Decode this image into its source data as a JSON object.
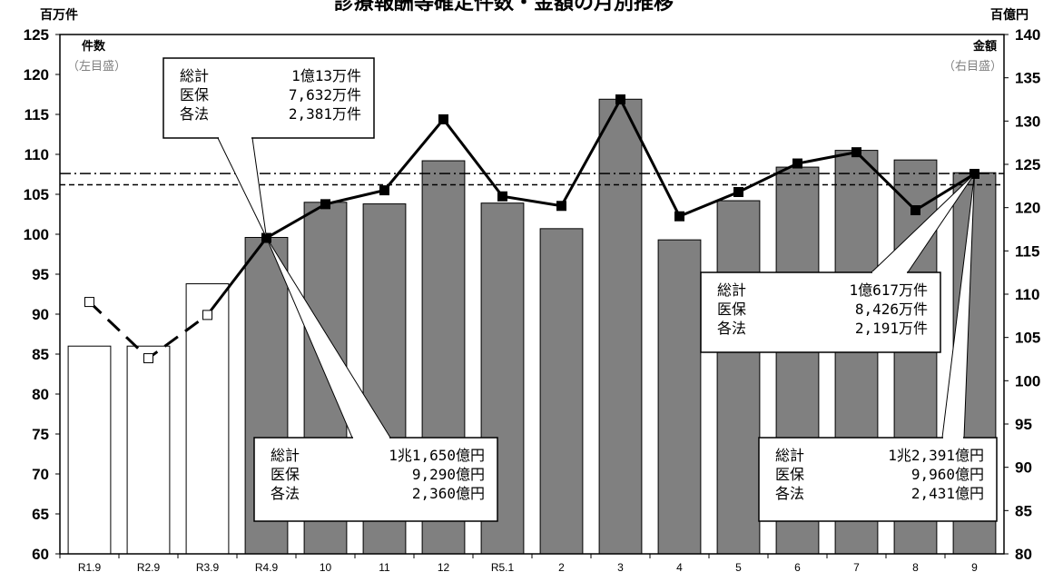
{
  "chart_data": {
    "type": "bar",
    "title": "診療報酬等確定件数・金額の月別推移",
    "left_unit": "百万件",
    "right_unit": "百億円",
    "left_axis_name": "件数",
    "left_axis_note": "（左目盛）",
    "right_axis_name": "金額",
    "right_axis_note": "（右目盛）",
    "categories": [
      "R1.9",
      "R2.9",
      "R3.9",
      "R4.9",
      "10",
      "11",
      "12",
      "R5.1",
      "2",
      "3",
      "4",
      "5",
      "6",
      "7",
      "8",
      "9"
    ],
    "left_ylim": [
      60,
      125
    ],
    "left_ticks": [
      "60",
      "65",
      "70",
      "75",
      "80",
      "85",
      "90",
      "95",
      "100",
      "105",
      "110",
      "115",
      "120",
      "125"
    ],
    "right_ylim": [
      80,
      140
    ],
    "right_ticks": [
      "80",
      "85",
      "90",
      "95",
      "100",
      "105",
      "110",
      "115",
      "120",
      "125",
      "130",
      "135",
      "140"
    ],
    "series": [
      {
        "kind": "bar",
        "axis": "left",
        "values": [
          86.0,
          86.0,
          93.8,
          99.6,
          104.0,
          103.8,
          109.2,
          103.9,
          100.7,
          116.9,
          99.3,
          104.2,
          108.4,
          110.5,
          109.3,
          107.7
        ],
        "hollow_count": 3,
        "fill": "#808080",
        "hollow_fill": "#ffffff"
      },
      {
        "kind": "line",
        "axis": "right",
        "values": [
          109.1,
          102.6,
          107.6,
          116.5,
          120.4,
          122.0,
          130.2,
          121.3,
          120.2,
          132.5,
          119.0,
          121.8,
          125.1,
          126.4,
          119.7,
          123.9
        ],
        "dashed_count": 3
      }
    ],
    "reference_lines": [
      {
        "axis": "left",
        "value": 107.6,
        "style": "dashdot"
      },
      {
        "axis": "left",
        "value": 106.2,
        "style": "dash"
      }
    ],
    "annotations": [
      {
        "rows": [
          [
            "総計",
            "1億13万件"
          ],
          [
            "医保",
            "7,632万件"
          ],
          [
            "各法",
            "2,381万件"
          ]
        ]
      },
      {
        "rows": [
          [
            "総計",
            "1兆1,650億円"
          ],
          [
            "医保",
            "9,290億円"
          ],
          [
            "各法",
            "2,360億円"
          ]
        ]
      },
      {
        "rows": [
          [
            "総計",
            "1億617万件"
          ],
          [
            "医保",
            "8,426万件"
          ],
          [
            "各法",
            "2,191万件"
          ]
        ]
      },
      {
        "rows": [
          [
            "総計",
            "1兆2,391億円"
          ],
          [
            "医保",
            "9,960億円"
          ],
          [
            "各法",
            "2,431億円"
          ]
        ]
      }
    ]
  }
}
